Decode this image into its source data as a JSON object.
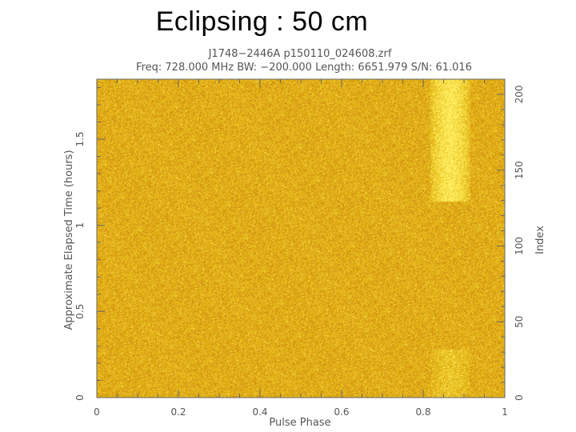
{
  "slide": {
    "title": "Eclipsing : 50 cm"
  },
  "chart_data": {
    "type": "heatmap",
    "header_line1": "J1748−2446A  p150110_024608.zrf",
    "header_line2": "Freq: 728.000 MHz BW: −200.000 Length: 6651.979 S/N: 61.016",
    "xlabel": "Pulse Phase",
    "ylabel": "Approximate Elapsed Time (hours)",
    "y2label": "Index",
    "xlim": [
      0,
      1
    ],
    "ylim": [
      0,
      1.848
    ],
    "y2lim": [
      0,
      210
    ],
    "x_ticks": [
      "0",
      "0.2",
      "0.4",
      "0.6",
      "0.8",
      "1"
    ],
    "x_tick_values": [
      0,
      0.2,
      0.4,
      0.6,
      0.8,
      1
    ],
    "y_ticks": [
      "0",
      "0.5",
      "1",
      "1.5"
    ],
    "y_tick_values": [
      0,
      0.5,
      1,
      1.5
    ],
    "y2_ticks": [
      "0",
      "50",
      "100",
      "150",
      "200"
    ],
    "y2_tick_values": [
      0,
      50,
      100,
      150,
      200
    ],
    "colormap": {
      "background": "#e2a83a",
      "pulse": "#f3e15a"
    },
    "pulse_signal": [
      {
        "phase_range": [
          0.83,
          0.9
        ],
        "hours_range": [
          1.14,
          1.848
        ],
        "strength": "bright"
      },
      {
        "phase_range": [
          0.83,
          0.9
        ],
        "hours_range": [
          0,
          0.28
        ],
        "strength": "faint"
      }
    ],
    "eclipse_hours_range": [
      0.28,
      1.14
    ],
    "grid": false
  }
}
